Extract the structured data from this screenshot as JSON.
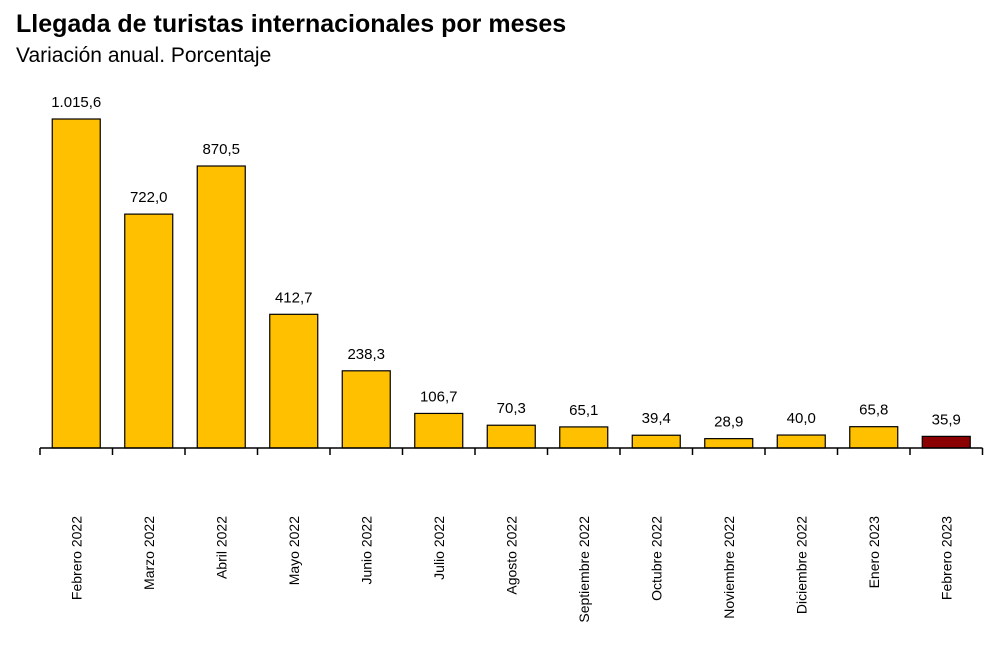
{
  "chart_data": {
    "type": "bar",
    "title": "Llegada de turistas internacionales por meses",
    "subtitle": "Variación anual. Porcentaje",
    "categories": [
      "Febrero 2022",
      "Marzo 2022",
      "Abril 2022",
      "Mayo 2022",
      "Junio 2022",
      "Julio 2022",
      "Agosto 2022",
      "Septiembre 2022",
      "Octubre 2022",
      "Noviembre 2022",
      "Diciembre 2022",
      "Enero 2023",
      "Febrero 2023"
    ],
    "values": [
      1015.6,
      722.0,
      870.5,
      412.7,
      238.3,
      106.7,
      70.3,
      65.1,
      39.4,
      28.9,
      40.0,
      65.8,
      35.9
    ],
    "data_labels": [
      "1.015,6",
      "722,0",
      "870,5",
      "412,7",
      "238,3",
      "106,7",
      "70,3",
      "65,1",
      "39,4",
      "28,9",
      "40,0",
      "65,8",
      "35,9"
    ],
    "ylim": [
      0,
      1015.6
    ],
    "grid": false,
    "colors": {
      "bar": "#FFC000",
      "highlight_bar": "#8B0000",
      "bar_outline": "#000000",
      "axis": "#000000"
    },
    "highlight_index": 12
  }
}
